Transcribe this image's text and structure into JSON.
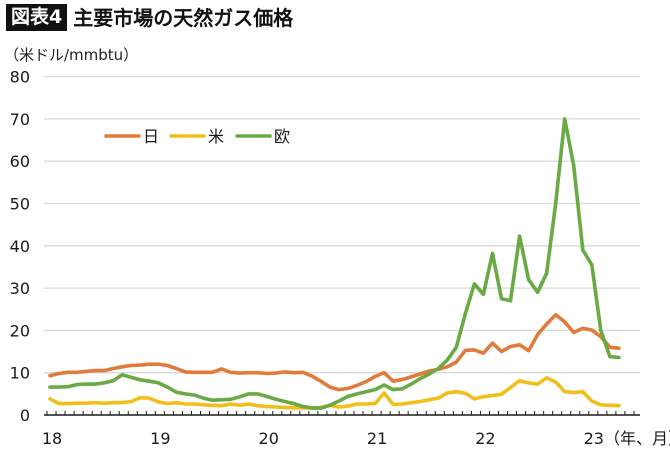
{
  "header": {
    "figure_label": "図表4",
    "title": "主要市場の天然ガス価格",
    "unit_label": "（米ドル/mmbtu）",
    "x_unit_label": "（年、月）"
  },
  "colors": {
    "japan": "#E07B3C",
    "us": "#F2BE1A",
    "europe": "#6AAA44",
    "grid": "#D9D9D9",
    "axis": "#1a1a1a"
  },
  "chart_data": {
    "type": "line",
    "title": "主要市場の天然ガス価格",
    "xlabel": "（年、月）",
    "ylabel": "（米ドル/mmbtu）",
    "ylim": [
      0,
      80
    ],
    "yticks": [
      0,
      10,
      20,
      30,
      40,
      50,
      60,
      70,
      80
    ],
    "xtick_labels": [
      "18",
      "19",
      "20",
      "21",
      "22",
      "23"
    ],
    "xtick_month_index": [
      0,
      12,
      24,
      36,
      48,
      60
    ],
    "grid": true,
    "legend_position": "upper-left inside",
    "x_start": "2018-01",
    "x_end": "2023-04",
    "frequency": "monthly",
    "series": [
      {
        "name": "日",
        "color": "#E07B3C",
        "values": [
          9.3,
          9.8,
          10.1,
          10.1,
          10.3,
          10.5,
          10.5,
          11.0,
          11.4,
          11.7,
          11.8,
          12.0,
          12.0,
          11.7,
          11.0,
          10.2,
          10.1,
          10.1,
          10.1,
          10.9,
          10.1,
          9.9,
          10.0,
          10.0,
          9.8,
          9.9,
          10.2,
          10.0,
          10.1,
          9.2,
          8.0,
          6.6,
          6.0,
          6.3,
          7.0,
          7.9,
          9.1,
          10.0,
          8.0,
          8.4,
          9.0,
          9.7,
          10.4,
          10.8,
          11.4,
          12.5,
          15.3,
          15.4,
          14.6,
          17.0,
          15.0,
          16.2,
          16.6,
          15.2,
          19.0,
          21.5,
          23.7,
          22.0,
          19.5,
          20.5,
          20.1,
          18.5,
          16.0,
          15.8
        ]
      },
      {
        "name": "米",
        "color": "#F2BE1A",
        "values": [
          3.8,
          2.7,
          2.7,
          2.8,
          2.8,
          2.9,
          2.8,
          2.9,
          2.9,
          3.2,
          4.1,
          4.0,
          3.1,
          2.7,
          2.9,
          2.6,
          2.6,
          2.4,
          2.3,
          2.2,
          2.6,
          2.3,
          2.6,
          2.2,
          2.0,
          1.9,
          1.8,
          1.7,
          1.7,
          1.6,
          1.8,
          2.3,
          1.9,
          2.1,
          2.6,
          2.6,
          2.7,
          5.2,
          2.5,
          2.6,
          2.9,
          3.2,
          3.6,
          4.0,
          5.2,
          5.5,
          5.1,
          3.8,
          4.3,
          4.6,
          4.9,
          6.5,
          8.1,
          7.6,
          7.3,
          8.8,
          7.8,
          5.5,
          5.3,
          5.5,
          3.3,
          2.4,
          2.3,
          2.2
        ]
      },
      {
        "name": "欧",
        "color": "#6AAA44",
        "values": [
          6.6,
          6.6,
          6.7,
          7.2,
          7.3,
          7.3,
          7.6,
          8.1,
          9.5,
          8.9,
          8.3,
          8.0,
          7.6,
          6.6,
          5.4,
          5.0,
          4.7,
          4.0,
          3.5,
          3.6,
          3.7,
          4.3,
          5.0,
          5.0,
          4.4,
          3.7,
          3.2,
          2.7,
          2.0,
          1.7,
          1.6,
          2.3,
          3.3,
          4.4,
          5.0,
          5.5,
          6.0,
          7.1,
          6.0,
          6.2,
          7.3,
          8.6,
          9.7,
          11.0,
          13.0,
          16.0,
          24.0,
          31.0,
          28.5,
          38.2,
          27.5,
          27.0,
          42.3,
          32.0,
          29.0,
          33.5,
          50.0,
          70.0,
          59.0,
          39.0,
          35.5,
          36.0,
          20.0,
          16.5
        ]
      }
    ],
    "europe_tail_values": [
      13.8,
      13.6
    ]
  },
  "legend": {
    "items": [
      {
        "label": "日",
        "color": "#E07B3C"
      },
      {
        "label": "米",
        "color": "#F2BE1A"
      },
      {
        "label": "欧",
        "color": "#6AAA44"
      }
    ]
  }
}
